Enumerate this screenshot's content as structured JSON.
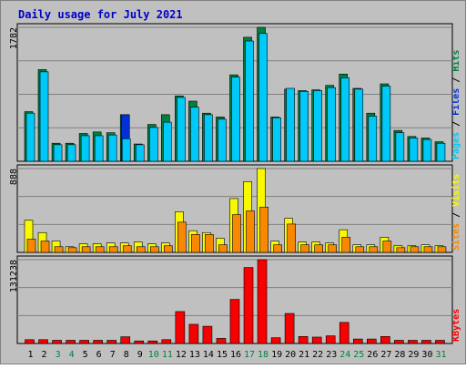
{
  "colors": {
    "background": "#C0C0C0",
    "panel_border": "#000000",
    "title": "#0000C8",
    "hits_back": "#008040",
    "files_front": "#00C8F8",
    "pages_front": "#0030D8",
    "visits_back": "#F8F800",
    "sites_front": "#F88800",
    "kbytes": "#F80000",
    "weekend_day": "#008040",
    "weekday_day": "#000000",
    "label_pages": "#00C8F8",
    "label_files": "#0030D8",
    "label_hits": "#008040",
    "label_sites": "#F88800",
    "label_visits": "#F8F800",
    "label_kbytes": "#F80000"
  },
  "chart_data": {
    "type": "bar",
    "title": "Daily usage for July 2021",
    "categories": [
      "1",
      "2",
      "3",
      "4",
      "5",
      "6",
      "7",
      "8",
      "9",
      "10",
      "11",
      "12",
      "13",
      "14",
      "15",
      "16",
      "17",
      "18",
      "19",
      "20",
      "21",
      "22",
      "23",
      "24",
      "25",
      "26",
      "27",
      "28",
      "29",
      "30",
      "31"
    ],
    "weekend_days": [
      "3",
      "4",
      "10",
      "11",
      "17",
      "18",
      "24",
      "25",
      "31"
    ],
    "panels": [
      {
        "name": "hits-files-pages",
        "ymax_label": "1782",
        "ylim": [
          0,
          1782
        ],
        "legend_separator": " / ",
        "legend": [
          "Pages",
          "Files",
          "Hits"
        ],
        "series": [
          {
            "name": "Hits",
            "values": [
              660,
              1220,
              240,
              240,
              370,
              390,
              380,
              620,
              230,
              490,
              620,
              870,
              800,
              640,
              590,
              1150,
              1650,
              1782,
              590,
              960,
              940,
              950,
              1010,
              1160,
              970,
              640,
              1030,
              410,
              330,
              310,
              260
            ]
          },
          {
            "name": "Files",
            "values": [
              640,
              1190,
              220,
              220,
              340,
              340,
              350,
              300,
              220,
              450,
              520,
              850,
              720,
              620,
              560,
              1120,
              1600,
              1700,
              580,
              970,
              930,
              940,
              980,
              1110,
              960,
              600,
              1000,
              380,
              310,
              290,
              240
            ]
          },
          {
            "name": "Pages",
            "values": [
              0,
              0,
              0,
              0,
              0,
              0,
              0,
              620,
              0,
              0,
              0,
              0,
              0,
              0,
              0,
              0,
              0,
              0,
              0,
              0,
              0,
              0,
              0,
              0,
              0,
              0,
              0,
              0,
              0,
              0,
              0
            ]
          }
        ]
      },
      {
        "name": "visits-sites",
        "ymax_label": "888",
        "ylim": [
          0,
          888
        ],
        "legend_separator": " / ",
        "legend": [
          "Sites",
          "Visits"
        ],
        "series": [
          {
            "name": "Visits",
            "values": [
              340,
              210,
              120,
              60,
              90,
              90,
              100,
              100,
              110,
              90,
              100,
              430,
              230,
              210,
              150,
              570,
              750,
              888,
              120,
              360,
              110,
              110,
              100,
              240,
              80,
              80,
              160,
              70,
              70,
              80,
              70
            ]
          },
          {
            "name": "Sites",
            "values": [
              140,
              120,
              60,
              50,
              60,
              60,
              60,
              70,
              60,
              60,
              70,
              320,
              190,
              190,
              80,
              400,
              440,
              480,
              80,
              300,
              80,
              80,
              80,
              160,
              60,
              60,
              120,
              50,
              60,
              60,
              60
            ]
          }
        ]
      },
      {
        "name": "kbytes",
        "ymax_label": "131238",
        "ylim": [
          0,
          131238
        ],
        "legend": [
          "KBytes"
        ],
        "series": [
          {
            "name": "KBytes",
            "values": [
              6000,
              6000,
              5000,
              5000,
              5000,
              5000,
              5000,
              10500,
              4000,
              4000,
              6000,
              50000,
              30000,
              27000,
              8000,
              69000,
              119000,
              131238,
              9000,
              47000,
              11000,
              10000,
              12000,
              33000,
              7000,
              7000,
              11000,
              5000,
              5000,
              5000,
              5000
            ]
          }
        ]
      }
    ]
  }
}
